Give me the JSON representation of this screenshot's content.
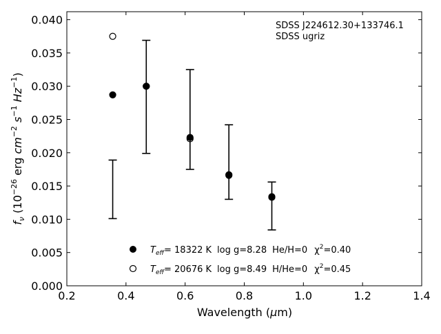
{
  "chart_data": {
    "type": "scatter",
    "xlabel": "Wavelength (μm)",
    "ylabel": "f_ν (10^-26 erg cm^-2 s^-1 Hz^-1)",
    "xlim": [
      0.2,
      1.4
    ],
    "ylim": [
      0.0,
      0.0412
    ],
    "x_ticks": [
      0.2,
      0.4,
      0.6,
      0.8,
      1.0,
      1.2,
      1.4
    ],
    "x_tick_labels": [
      "0.2",
      "0.4",
      "0.6",
      "0.8",
      "1.0",
      "1.2",
      "1.4"
    ],
    "y_ticks": [
      0.0,
      0.005,
      0.01,
      0.015,
      0.02,
      0.025,
      0.03,
      0.035,
      0.04
    ],
    "y_tick_labels": [
      "0.000",
      "0.005",
      "0.010",
      "0.015",
      "0.020",
      "0.025",
      "0.030",
      "0.035",
      "0.040"
    ],
    "grid": false,
    "annotation": [
      "SDSS J224612.30+133746.1",
      "SDSS ugriz"
    ],
    "observed": {
      "x": [
        0.3551,
        0.4686,
        0.6166,
        0.748,
        0.8932
      ],
      "y": [
        0.0145,
        0.0284,
        0.025,
        0.0186,
        0.012
      ],
      "yerr": [
        0.0044,
        0.0085,
        0.0075,
        0.0056,
        0.0036
      ]
    },
    "series": [
      {
        "name": "Teff= 18322 K log g=8.28 He/H=0 χ²=0.40",
        "marker": "filled-circle",
        "x": [
          0.3551,
          0.4686,
          0.6166,
          0.748,
          0.8932
        ],
        "y": [
          0.0287,
          0.03,
          0.0223,
          0.0167,
          0.0133
        ]
      },
      {
        "name": "Teff= 20676 K log g=8.49 H/He=0 χ²=0.45",
        "marker": "open-circle",
        "x": [
          0.3551,
          0.4686,
          0.6166,
          0.748,
          0.8932
        ],
        "y": [
          0.0375,
          0.03,
          0.0221,
          0.0166,
          0.0134
        ]
      }
    ],
    "legend_placement": "lower-center",
    "legend": [
      {
        "teff": "18322 K",
        "logg": "log g=8.28",
        "comp": "He/H=0",
        "chi2": "=0.40"
      },
      {
        "teff": "20676 K",
        "logg": "log g=8.49",
        "comp": "H/He=0",
        "chi2": "=0.45"
      }
    ]
  }
}
